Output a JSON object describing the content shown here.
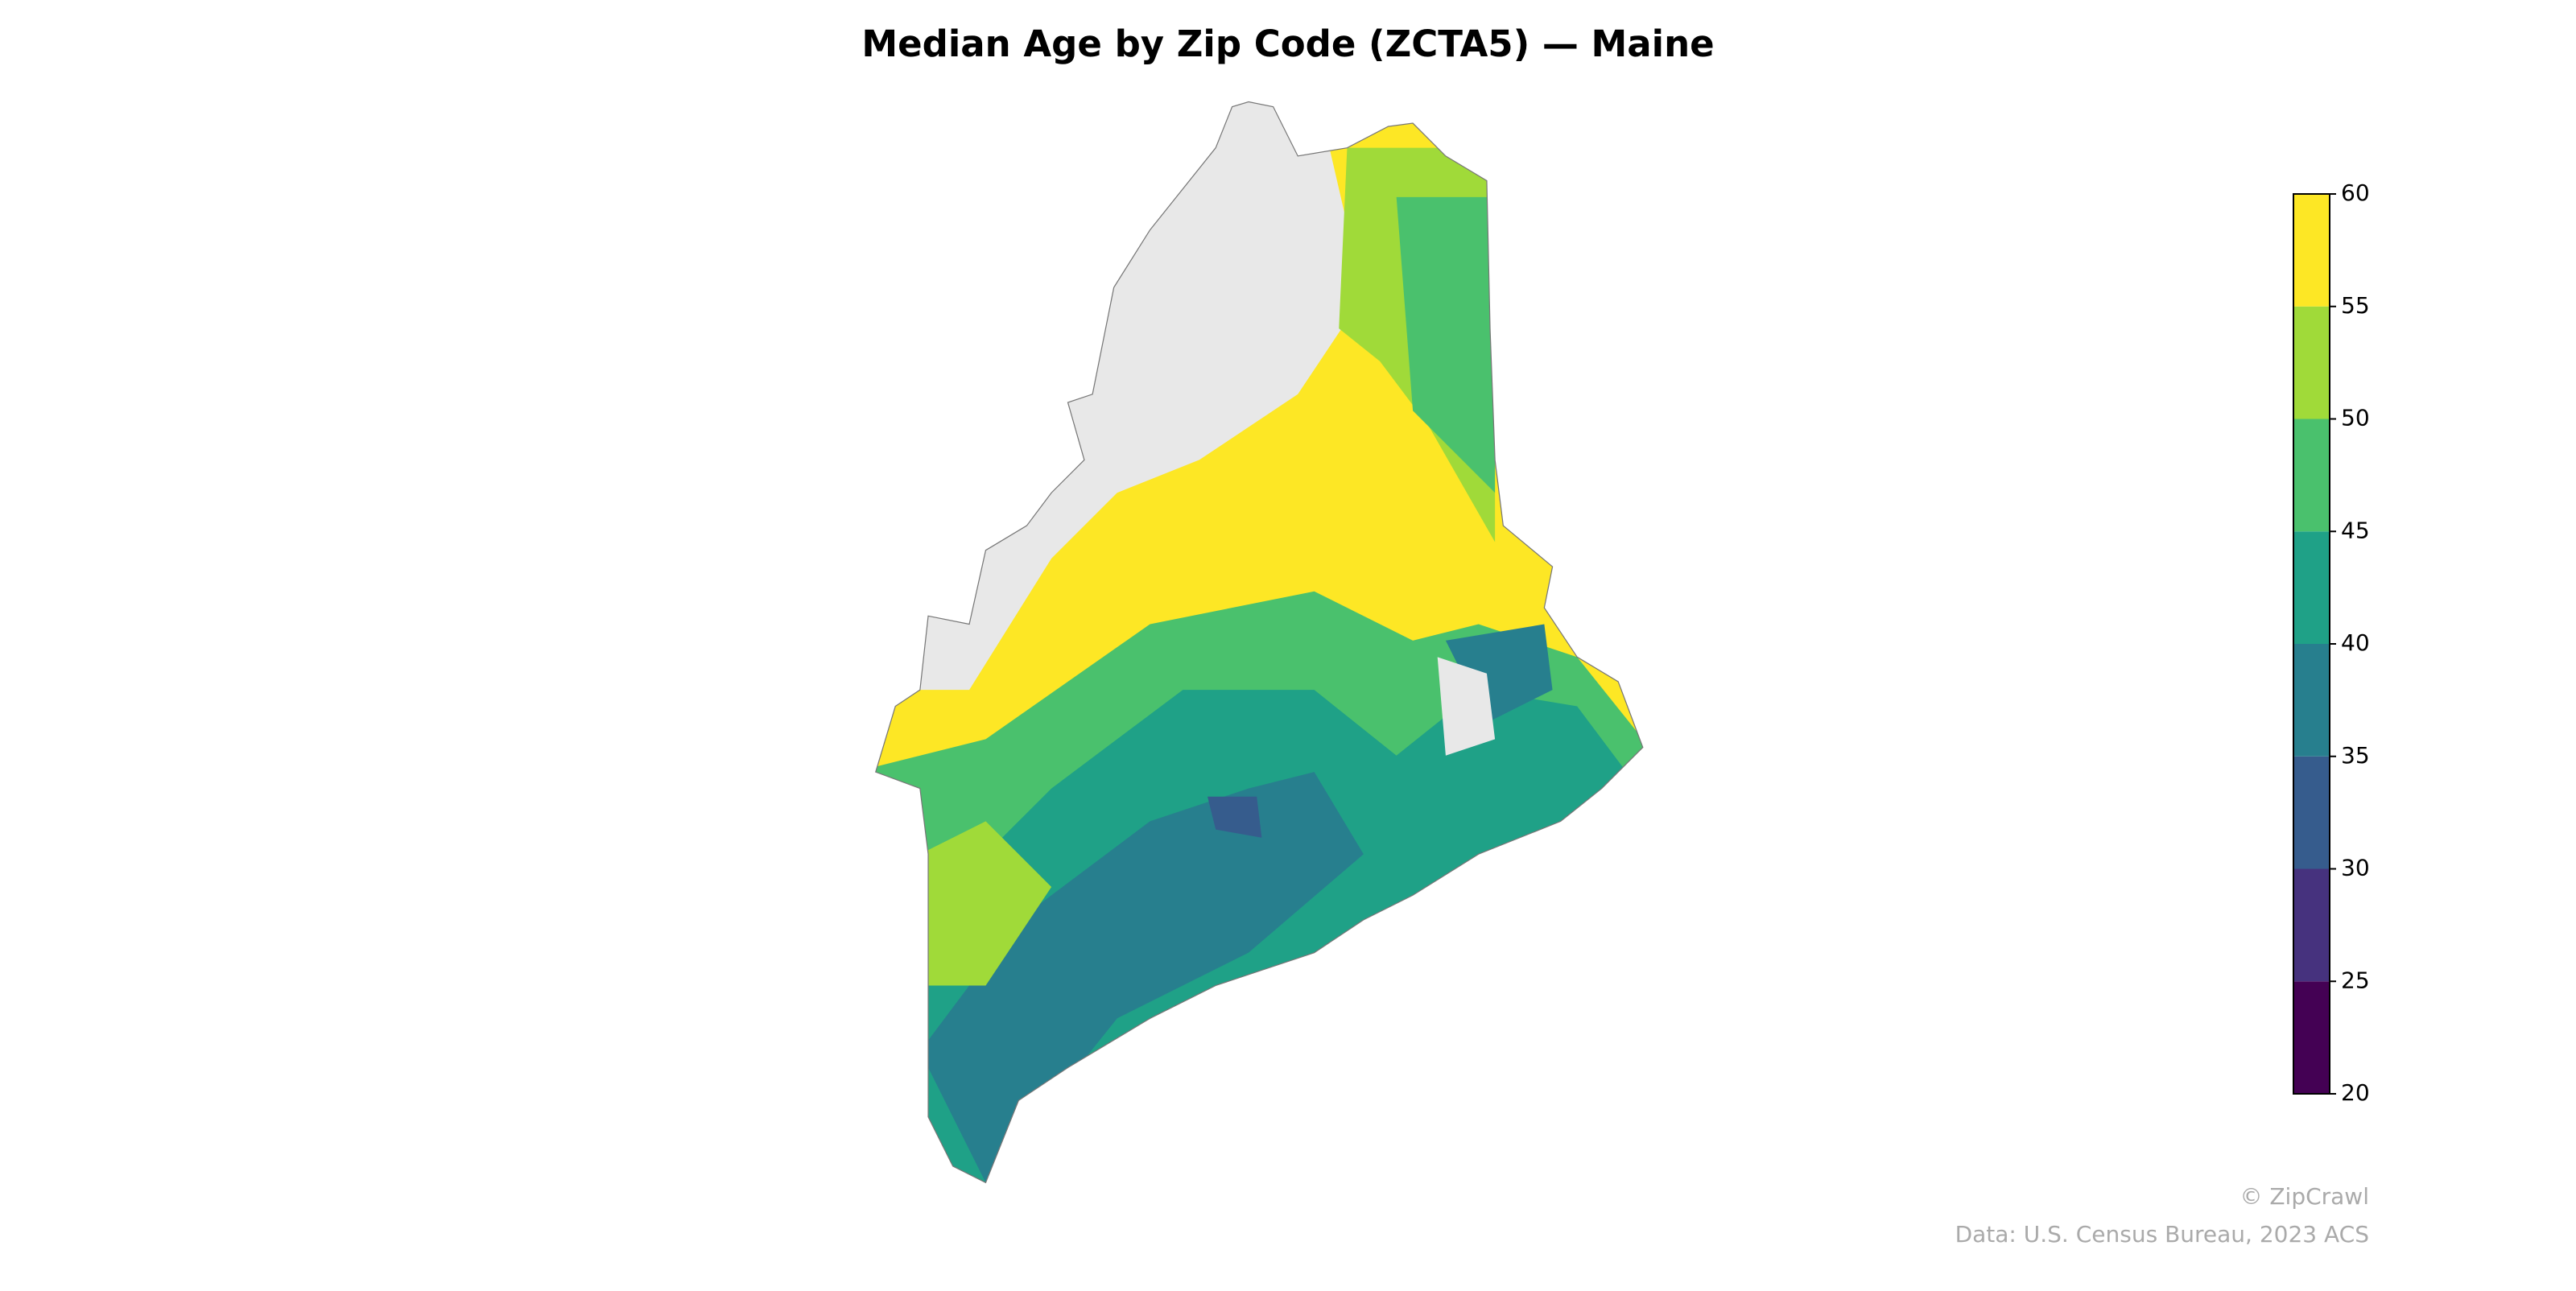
{
  "title": "Median Age by Zip Code (ZCTA5) — Maine",
  "map": {
    "colorbar": {
      "lim": [
        20,
        60
      ],
      "ticks": [
        20,
        25,
        30,
        35,
        40,
        45,
        50,
        55,
        60
      ],
      "colors": [
        "#440154",
        "#46327e",
        "#365c8d",
        "#277f8e",
        "#1fa187",
        "#4ac16d",
        "#a0da39",
        "#fde725"
      ]
    }
  },
  "footer": {
    "credit": "© ZipCrawl",
    "source": "Data: U.S. Census Bureau, 2023 ACS"
  }
}
